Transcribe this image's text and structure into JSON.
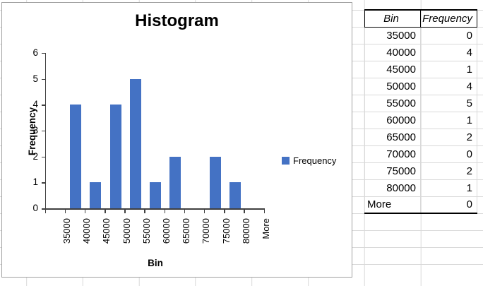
{
  "chart": {
    "legend_label": "Frequency"
  },
  "chart_data": {
    "type": "bar",
    "title": "Histogram",
    "xlabel": "Bin",
    "ylabel": "Frequency",
    "categories": [
      "35000",
      "40000",
      "45000",
      "50000",
      "55000",
      "60000",
      "65000",
      "70000",
      "75000",
      "80000",
      "More"
    ],
    "values": [
      0,
      4,
      1,
      4,
      5,
      1,
      2,
      0,
      2,
      1,
      0
    ],
    "ylim": [
      0,
      6
    ],
    "y_tick_step": 1,
    "grid": false,
    "legend": [
      "Frequency"
    ],
    "legend_position": "right",
    "bar_color": "#4472C4"
  },
  "table": {
    "headers": [
      "Bin",
      "Frequency"
    ],
    "rows": [
      [
        "35000",
        "0"
      ],
      [
        "40000",
        "4"
      ],
      [
        "45000",
        "1"
      ],
      [
        "50000",
        "4"
      ],
      [
        "55000",
        "5"
      ],
      [
        "60000",
        "1"
      ],
      [
        "65000",
        "2"
      ],
      [
        "70000",
        "0"
      ],
      [
        "75000",
        "2"
      ],
      [
        "80000",
        "1"
      ],
      [
        "More",
        "0"
      ]
    ]
  }
}
